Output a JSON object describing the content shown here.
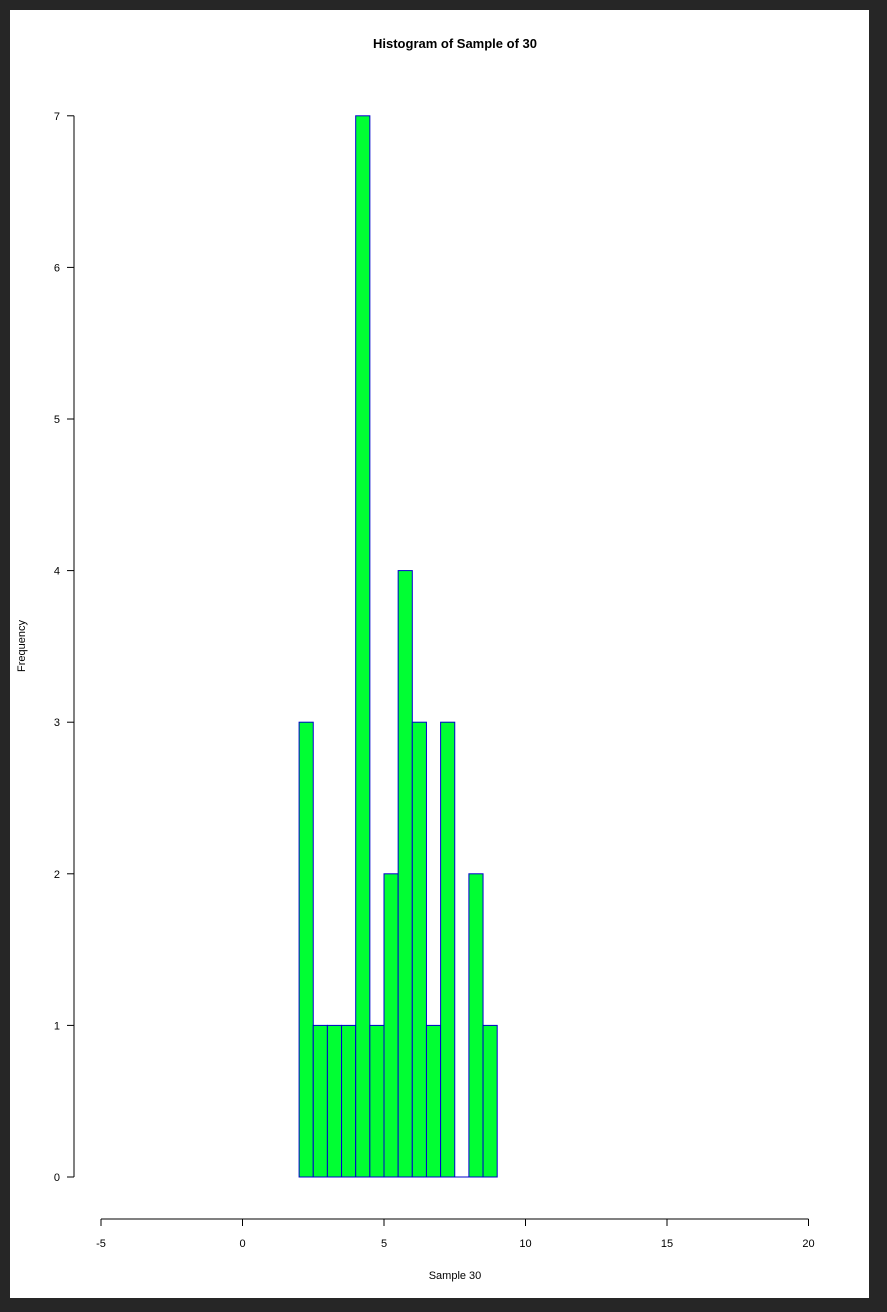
{
  "chart_data": {
    "type": "bar",
    "title": "Histogram of Sample of 30",
    "xlabel": "Sample 30",
    "ylabel": "Frequency",
    "xlim": [
      -5,
      20
    ],
    "ylim": [
      0,
      7
    ],
    "x_ticks": [
      "-5",
      "0",
      "5",
      "10",
      "15",
      "20"
    ],
    "y_ticks": [
      "0",
      "1",
      "2",
      "3",
      "4",
      "5",
      "6",
      "7"
    ],
    "bin_width": 0.5,
    "bin_starts": [
      2,
      2.5,
      3,
      3.5,
      4,
      4.5,
      5,
      5.5,
      6,
      6.5,
      7,
      7.5,
      8,
      8.5
    ],
    "values": [
      3,
      1,
      1,
      1,
      7,
      1,
      2,
      4,
      3,
      1,
      3,
      0,
      2,
      1
    ],
    "bar_fill": "#00ff33",
    "bar_stroke": "#0000cc",
    "grid": false
  }
}
